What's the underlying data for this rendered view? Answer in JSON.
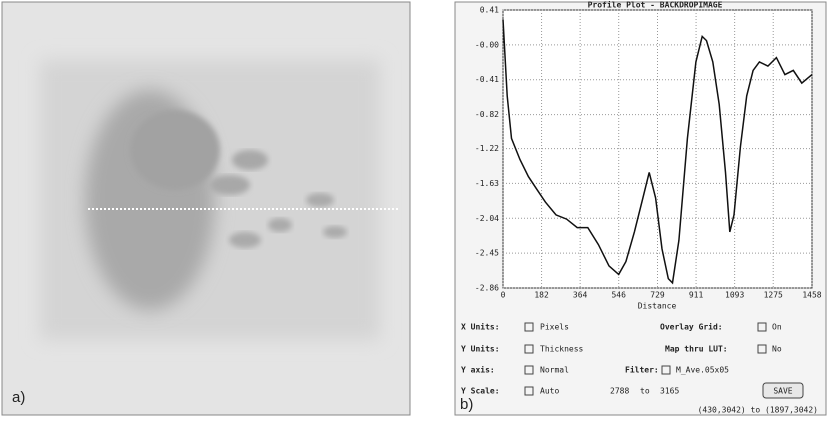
{
  "panels": {
    "a": "a)",
    "b": "b)"
  },
  "chart_data": {
    "type": "line",
    "title": "Profile Plot - BACKDROPIMAGE",
    "x_label": "Distance",
    "x": [
      0,
      20,
      40,
      80,
      120,
      160,
      200,
      250,
      300,
      350,
      400,
      450,
      500,
      546,
      580,
      620,
      660,
      690,
      720,
      750,
      780,
      800,
      830,
      870,
      910,
      940,
      960,
      990,
      1020,
      1050,
      1070,
      1090,
      1120,
      1150,
      1180,
      1210,
      1250,
      1290,
      1330,
      1370,
      1410,
      1458
    ],
    "series": [
      {
        "color": "#111111",
        "values": [
          0.3,
          -0.6,
          -1.1,
          -1.35,
          -1.55,
          -1.7,
          -1.85,
          -2.0,
          -2.05,
          -2.15,
          -2.15,
          -2.35,
          -2.6,
          -2.7,
          -2.55,
          -2.2,
          -1.8,
          -1.5,
          -1.8,
          -2.4,
          -2.75,
          -2.8,
          -2.3,
          -1.1,
          -0.2,
          0.1,
          0.05,
          -0.2,
          -0.7,
          -1.5,
          -2.2,
          -2.0,
          -1.2,
          -0.6,
          -0.3,
          -0.2,
          -0.25,
          -0.15,
          -0.35,
          -0.3,
          -0.45,
          -0.35
        ]
      }
    ],
    "xlim": [
      0,
      1458
    ],
    "xticks": [
      0,
      182,
      364,
      546,
      729,
      911,
      1093,
      1275,
      1458
    ],
    "ylim": [
      -2.86,
      0.41
    ],
    "yticks": [
      0.41,
      {
        "value": 0,
        "label": "-0.00"
      },
      -0.41,
      -0.82,
      -1.22,
      -1.63,
      -2.04,
      -2.45,
      -2.86
    ],
    "grid": true
  },
  "controls": {
    "x_units": {
      "label": "X Units:",
      "value": "Pixels"
    },
    "overlay_grid": {
      "label": "Overlay Grid:",
      "value": "On"
    },
    "y_units": {
      "label": "Y Units:",
      "value": "Thickness"
    },
    "map_lut": {
      "label": "Map thru LUT:",
      "value": "No"
    },
    "y_axis": {
      "label": "Y axis:",
      "value": "Normal"
    },
    "filter": {
      "label": "Filter:",
      "value": "M_Ave.05x05"
    },
    "y_scale": {
      "label": "Y Scale:",
      "value": "Auto",
      "from": "2788",
      "to_word": "to",
      "to": "3165"
    },
    "save": "SAVE",
    "coords": "(430,3042) to (1897,3042)"
  }
}
